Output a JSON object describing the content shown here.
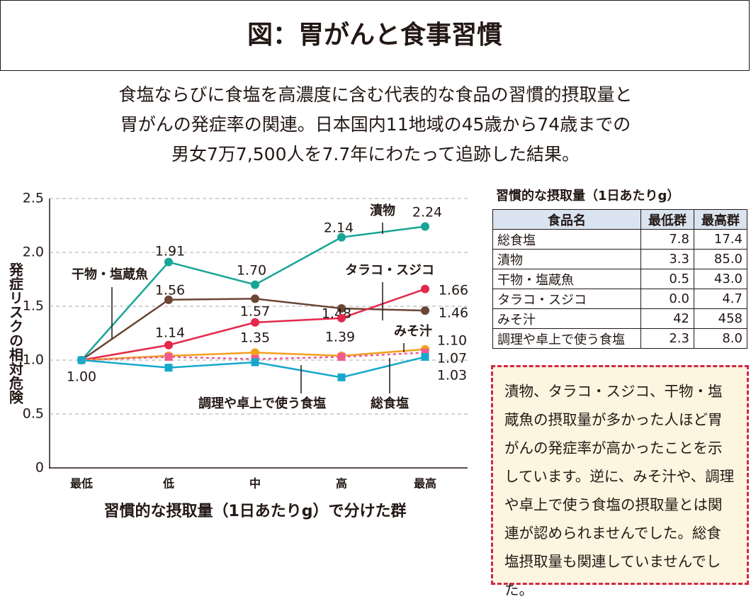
{
  "header": {
    "title": "図：胃がんと食事習慣"
  },
  "subtitle": [
    "食塩ならびに食塩を高濃度に含む代表的な食品の習慣的摂取量と",
    "胃がんの発症率の関連。日本国内11地域の45歳から74歳までの",
    "男女7万7,500人を7.7年にわたって追跡した結果。"
  ],
  "chart_data": {
    "type": "line",
    "y_label": "発症リスクの相対危険",
    "x_label": "習慣的な摂取量（1日あたりg）で分けた群",
    "categories": [
      "最低",
      "低",
      "中",
      "高",
      "最高"
    ],
    "ylim": [
      0,
      2.5
    ],
    "yticks": [
      0,
      {
        "value": 0.5,
        "label": "0.5"
      },
      {
        "value": 1,
        "label": "1.0"
      },
      {
        "value": 1.5,
        "label": "1.5"
      },
      {
        "value": 2,
        "label": "2.0"
      },
      {
        "value": 2.5,
        "label": "2.5"
      }
    ],
    "grid": true,
    "series": [
      {
        "name": "漬物",
        "color": "#17a596",
        "marker": "circle",
        "values": [
          1,
          1.91,
          1.7,
          2.14,
          2.24
        ],
        "value_labels": [
          "1.00",
          "1.91",
          "1.70",
          "2.14",
          "2.24"
        ]
      },
      {
        "name": "干物・塩蔵魚",
        "color": "#6b4636",
        "marker": "circle",
        "values": [
          1,
          1.56,
          1.57,
          1.48,
          1.46
        ],
        "value_labels": [
          null,
          "1.56",
          "1.57",
          "1.48",
          "1.46"
        ]
      },
      {
        "name": "タラコ・スジコ",
        "color": "#e3284b",
        "marker": "circle",
        "values": [
          1,
          1.14,
          1.35,
          1.39,
          1.66
        ],
        "value_labels": [
          null,
          "1.14",
          "1.35",
          "1.39",
          "1.66"
        ]
      },
      {
        "name": "みそ汁",
        "color": "#f2a01e",
        "marker": "circle",
        "values": [
          1,
          1.04,
          1.07,
          1.04,
          1.1
        ],
        "value_labels": [
          null,
          null,
          null,
          null,
          "1.10"
        ]
      },
      {
        "name": "総食塩",
        "color": "#ee5a90",
        "marker": "square",
        "dashed": true,
        "values": [
          1,
          1.03,
          1.01,
          1.03,
          1.07
        ],
        "value_labels": [
          null,
          null,
          null,
          null,
          "1.07"
        ]
      },
      {
        "name": "調理や卓上で使う食塩",
        "color": "#16a8cc",
        "marker": "square",
        "values": [
          1,
          0.93,
          0.98,
          0.84,
          1.03
        ],
        "value_labels": [
          null,
          null,
          null,
          null,
          "1.03"
        ]
      }
    ]
  },
  "table": {
    "title": "習慣的な摂取量（1日あたりg）",
    "header": [
      "食品名",
      "最低群",
      "最高群"
    ],
    "rows": [
      [
        "総食塩",
        "7.8",
        "17.4"
      ],
      [
        "漬物",
        "3.3",
        "85.0"
      ],
      [
        "干物・塩蔵魚",
        "0.5",
        "43.0"
      ],
      [
        "タラコ・スジコ",
        "0.0",
        "4.7"
      ],
      [
        "みそ汁",
        "42",
        "458"
      ],
      [
        "調理や卓上で使う食塩",
        "2.3",
        "8.0"
      ]
    ]
  },
  "note": {
    "text": "漬物、タラコ・スジコ、干物・塩蔵魚の摂取量が多かった人ほど胃がんの発症率が高かったことを示しています。逆に、みそ汁や、調理や卓上で使う食塩の摂取量とは関連が認められませんでした。総食塩摂取量も関連していませんでした。"
  }
}
